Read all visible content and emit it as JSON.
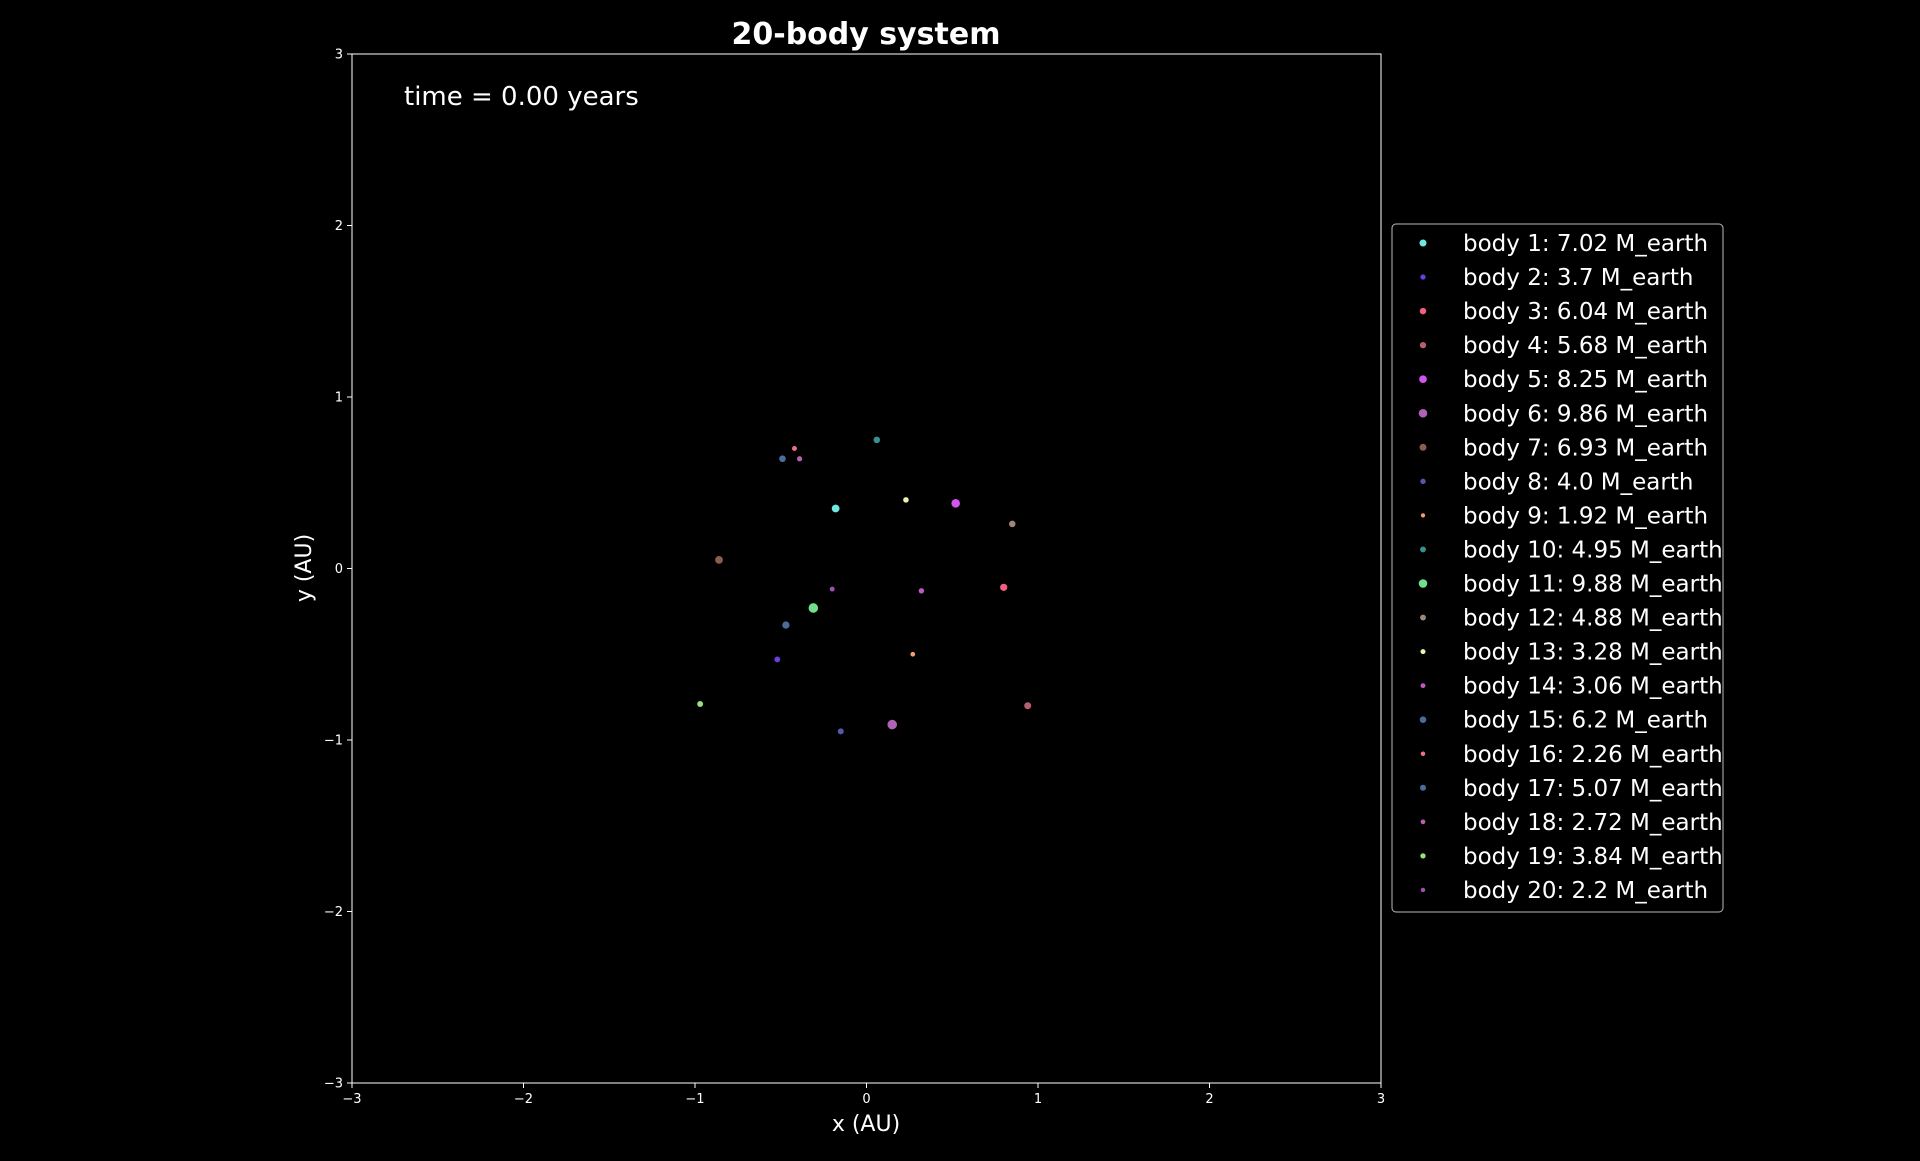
{
  "chart_data": {
    "type": "scatter",
    "title": "20-body system",
    "xlabel": "x (AU)",
    "ylabel": "y (AU)",
    "xlim": [
      -3,
      3
    ],
    "ylim": [
      -3,
      3
    ],
    "xticks": [
      -3,
      -2,
      -1,
      0,
      1,
      2,
      3
    ],
    "yticks": [
      -3,
      -2,
      -1,
      0,
      1,
      2,
      3
    ],
    "xtick_labels": [
      "−3",
      "−2",
      "−1",
      "0",
      "1",
      "2",
      "3"
    ],
    "ytick_labels": [
      "−3",
      "−2",
      "−1",
      "0",
      "1",
      "2",
      "3"
    ],
    "annotation": "time = 0.00 years",
    "grid": false,
    "legend_position": "right",
    "background": "#000000",
    "series": [
      {
        "name": "body 1: 7.02 M_earth",
        "color": "#6ee8e0",
        "mass": 7.02,
        "x": -0.18,
        "y": 0.35
      },
      {
        "name": "body 2: 3.7 M_earth",
        "color": "#6a3fe0",
        "mass": 3.7,
        "x": -0.52,
        "y": -0.53
      },
      {
        "name": "body 3: 6.04 M_earth",
        "color": "#f0607c",
        "mass": 6.04,
        "x": 0.8,
        "y": -0.11
      },
      {
        "name": "body 4: 5.68 M_earth",
        "color": "#b46070",
        "mass": 5.68,
        "x": 0.94,
        "y": -0.8
      },
      {
        "name": "body 5: 8.25 M_earth",
        "color": "#d454f0",
        "mass": 8.25,
        "x": 0.52,
        "y": 0.38
      },
      {
        "name": "body 6: 9.86 M_earth",
        "color": "#b062b4",
        "mass": 9.86,
        "x": 0.15,
        "y": -0.91
      },
      {
        "name": "body 7: 6.93 M_earth",
        "color": "#8c5c50",
        "mass": 6.93,
        "x": -0.86,
        "y": 0.05
      },
      {
        "name": "body 8: 4.0 M_earth",
        "color": "#5858a8",
        "mass": 4.0,
        "x": -0.15,
        "y": -0.95
      },
      {
        "name": "body 9: 1.92 M_earth",
        "color": "#f0a070",
        "mass": 1.92,
        "x": 0.27,
        "y": -0.5
      },
      {
        "name": "body 10: 4.95 M_earth",
        "color": "#3a9090",
        "mass": 4.95,
        "x": 0.06,
        "y": 0.75
      },
      {
        "name": "body 11: 9.88 M_earth",
        "color": "#70e090",
        "mass": 9.88,
        "x": -0.31,
        "y": -0.23
      },
      {
        "name": "body 12: 4.88 M_earth",
        "color": "#a08878",
        "mass": 4.88,
        "x": 0.85,
        "y": 0.26
      },
      {
        "name": "body 13: 3.28 M_earth",
        "color": "#f0f0b0",
        "mass": 3.28,
        "x": 0.23,
        "y": 0.4
      },
      {
        "name": "body 14: 3.06 M_earth",
        "color": "#c058c0",
        "mass": 3.06,
        "x": 0.32,
        "y": -0.13
      },
      {
        "name": "body 15: 6.2 M_earth",
        "color": "#4a6c9c",
        "mass": 6.2,
        "x": -0.47,
        "y": -0.33
      },
      {
        "name": "body 16: 2.26 M_earth",
        "color": "#f07088",
        "mass": 2.26,
        "x": -0.42,
        "y": 0.7
      },
      {
        "name": "body 17: 5.07 M_earth",
        "color": "#4c6ca0",
        "mass": 5.07,
        "x": -0.49,
        "y": 0.64
      },
      {
        "name": "body 18: 2.72 M_earth",
        "color": "#b860b0",
        "mass": 2.72,
        "x": -0.39,
        "y": 0.64
      },
      {
        "name": "body 19: 3.84 M_earth",
        "color": "#98e080",
        "mass": 3.84,
        "x": -0.97,
        "y": -0.79
      },
      {
        "name": "body 20: 2.2 M_earth",
        "color": "#a050b0",
        "mass": 2.2,
        "x": -0.2,
        "y": -0.12
      }
    ]
  }
}
